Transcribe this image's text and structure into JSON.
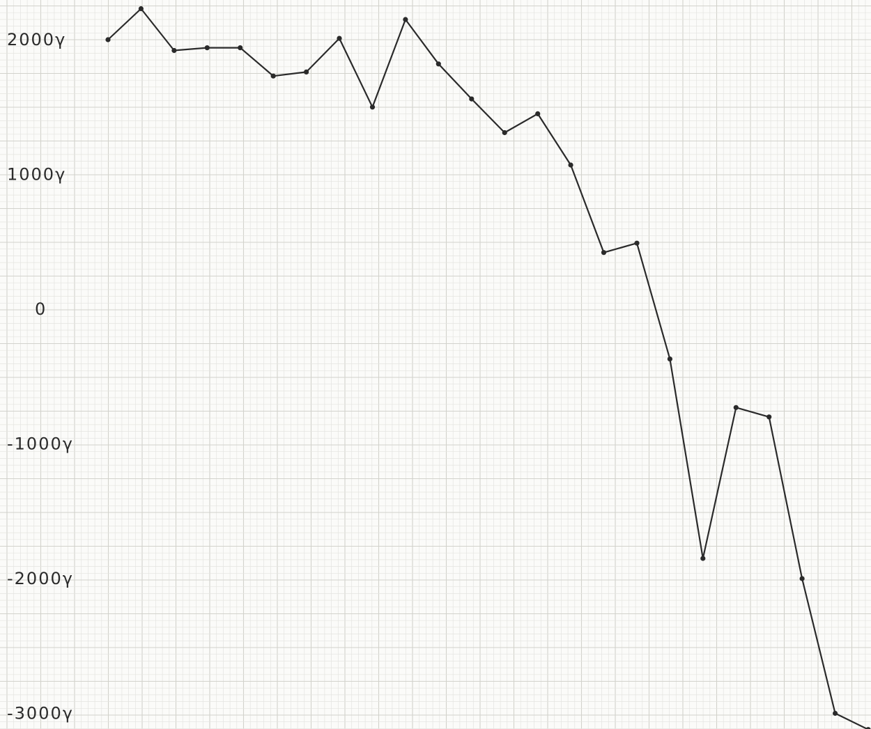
{
  "chart_data": {
    "type": "line",
    "title": "",
    "xlabel": "",
    "ylabel": "",
    "ylim": [
      -3100,
      2280
    ],
    "grid": true,
    "y_ticks": [
      {
        "value": 2000,
        "label": "2000γ"
      },
      {
        "value": 1000,
        "label": "1000γ"
      },
      {
        "value": 0,
        "label": "0"
      },
      {
        "value": -1000,
        "label": "-1000γ"
      },
      {
        "value": -2000,
        "label": "-2000γ"
      },
      {
        "value": -3000,
        "label": "-3000γ"
      }
    ],
    "x": [
      0,
      1,
      2,
      3,
      4,
      5,
      6,
      7,
      8,
      9,
      10,
      11,
      12,
      13,
      14,
      15,
      16,
      17,
      18,
      19,
      20,
      21,
      22,
      23
    ],
    "series": [
      {
        "values": [
          2000,
          2230,
          1920,
          1940,
          1940,
          1730,
          1760,
          2010,
          1500,
          2150,
          1820,
          1560,
          1310,
          1450,
          1070,
          420,
          490,
          -370,
          -1850,
          -730,
          -800,
          -2000,
          -3000,
          -3120
        ]
      }
    ],
    "colors": {
      "line": "#2a2a2a",
      "grid_minor": "#e4e4e0",
      "grid_major": "#d2d2cc",
      "paper": "#fbfbf9"
    }
  }
}
